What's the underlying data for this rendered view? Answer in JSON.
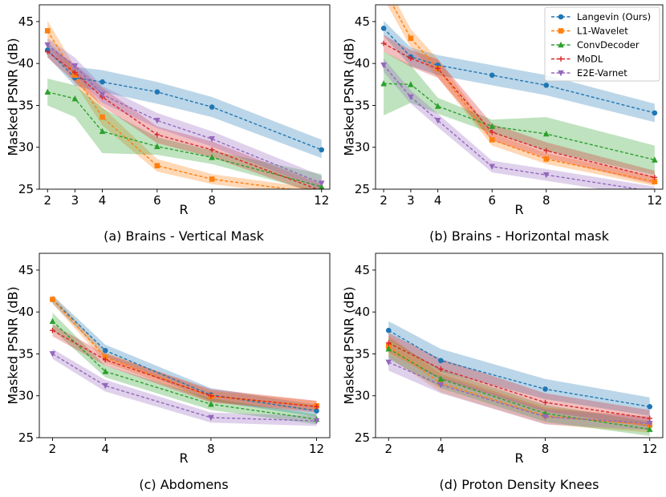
{
  "colors": {
    "Langevin (Ours)": "#1f77b4",
    "L1-Wavelet": "#ff7f0e",
    "ConvDecoder": "#2ca02c",
    "MoDL": "#d62728",
    "E2E-Varnet": "#9467bd"
  },
  "markers": {
    "Langevin (Ours)": "circle",
    "L1-Wavelet": "square",
    "ConvDecoder": "triangle-up",
    "MoDL": "plus",
    "E2E-Varnet": "triangle-down"
  },
  "legend": {
    "location": "top-right of panel (b)",
    "entries": [
      "Langevin (Ours)",
      "L1-Wavelet",
      "ConvDecoder",
      "MoDL",
      "E2E-Varnet"
    ]
  },
  "chart_data": [
    {
      "type": "line",
      "title": "(a) Brains - Vertical Mask",
      "xlabel": "R",
      "ylabel": "Masked PSNR (dB)",
      "xticks": [
        2,
        3,
        4,
        6,
        8,
        12
      ],
      "yticks": [
        25,
        30,
        35,
        40,
        45
      ],
      "xlim": [
        1.7,
        12.3
      ],
      "ylim": [
        25,
        47
      ],
      "x": [
        2,
        3,
        4,
        6,
        8,
        12
      ],
      "series": [
        {
          "name": "Langevin (Ours)",
          "values": [
            41.6,
            38.3,
            37.8,
            36.6,
            34.8,
            29.7
          ],
          "lower": [
            40.8,
            37.3,
            36.6,
            35.2,
            33.6,
            28.7
          ],
          "upper": [
            42.6,
            39.6,
            39.2,
            37.8,
            36.0,
            30.9
          ]
        },
        {
          "name": "L1-Wavelet",
          "values": [
            43.9,
            38.6,
            33.6,
            27.8,
            26.2,
            24.5
          ],
          "lower": [
            42.6,
            37.6,
            32.6,
            27.1,
            25.6,
            24.0
          ],
          "upper": [
            45.1,
            39.6,
            34.8,
            28.6,
            26.8,
            25.0
          ]
        },
        {
          "name": "ConvDecoder",
          "values": [
            36.6,
            35.8,
            31.9,
            30.1,
            28.8,
            25.3
          ],
          "lower": [
            35.0,
            33.6,
            29.3,
            29.1,
            28.0,
            24.5
          ],
          "upper": [
            38.2,
            37.4,
            34.7,
            31.2,
            29.6,
            26.8
          ]
        },
        {
          "name": "MoDL",
          "values": [
            41.4,
            38.9,
            36.0,
            31.5,
            29.7,
            24.8
          ],
          "lower": [
            40.7,
            37.8,
            34.9,
            30.5,
            28.8,
            24.2
          ],
          "upper": [
            42.1,
            39.9,
            37.1,
            32.5,
            30.7,
            25.6
          ]
        },
        {
          "name": "E2E-Varnet",
          "values": [
            42.2,
            39.7,
            36.3,
            33.2,
            31.0,
            25.7
          ],
          "lower": [
            41.4,
            38.7,
            35.3,
            32.3,
            30.1,
            24.9
          ],
          "upper": [
            43.0,
            40.7,
            37.3,
            34.1,
            31.9,
            26.6
          ]
        }
      ],
      "caption": "(a) Brains - Vertical Mask"
    },
    {
      "type": "line",
      "title": "(b) Brains - Horizontal mask",
      "xlabel": "R",
      "ylabel": "Masked PSNR (dB)",
      "xticks": [
        2,
        3,
        4,
        6,
        8,
        12
      ],
      "yticks": [
        25,
        30,
        35,
        40,
        45
      ],
      "xlim": [
        1.7,
        12.3
      ],
      "ylim": [
        25,
        47
      ],
      "x": [
        2,
        3,
        4,
        6,
        8,
        12
      ],
      "series": [
        {
          "name": "Langevin (Ours)",
          "values": [
            44.2,
            40.8,
            39.8,
            38.6,
            37.4,
            34.1
          ],
          "lower": [
            43.3,
            39.7,
            38.6,
            37.4,
            36.2,
            33.0
          ],
          "upper": [
            45.1,
            41.9,
            41.0,
            39.8,
            38.6,
            35.2
          ]
        },
        {
          "name": "L1-Wavelet",
          "values": [
            49.0,
            43.0,
            39.4,
            30.9,
            28.6,
            25.9
          ],
          "lower": [
            47.8,
            41.9,
            38.3,
            30.2,
            28.0,
            25.4
          ],
          "upper": [
            50.2,
            44.1,
            40.5,
            31.7,
            29.3,
            26.5
          ]
        },
        {
          "name": "ConvDecoder",
          "values": [
            37.6,
            37.5,
            34.9,
            32.5,
            31.6,
            28.5
          ],
          "lower": [
            33.8,
            35.3,
            34.0,
            31.7,
            29.6,
            26.7
          ],
          "upper": [
            41.4,
            39.8,
            35.9,
            33.3,
            33.6,
            30.2
          ]
        },
        {
          "name": "MoDL",
          "values": [
            42.4,
            40.6,
            39.4,
            31.8,
            29.6,
            26.4
          ],
          "lower": [
            41.4,
            39.6,
            38.3,
            30.8,
            28.7,
            25.6
          ],
          "upper": [
            43.4,
            41.6,
            40.5,
            32.8,
            30.6,
            27.2
          ]
        },
        {
          "name": "E2E-Varnet",
          "values": [
            39.8,
            36.0,
            33.2,
            27.7,
            26.7,
            24.7
          ],
          "lower": [
            39.0,
            35.2,
            32.4,
            27.0,
            26.0,
            24.0
          ],
          "upper": [
            40.6,
            36.8,
            34.0,
            28.4,
            27.4,
            25.3
          ]
        }
      ],
      "caption": "(b) Brains - Horizontal mask"
    },
    {
      "type": "line",
      "title": "(c) Abdomens",
      "xlabel": "R",
      "ylabel": "Masked PSNR (dB)",
      "xticks": [
        2,
        4,
        8,
        12
      ],
      "yticks": [
        25,
        30,
        35,
        40,
        45
      ],
      "xlim": [
        1.5,
        12.5
      ],
      "ylim": [
        25,
        47
      ],
      "x": [
        2,
        4,
        8,
        12
      ],
      "series": [
        {
          "name": "Langevin (Ours)",
          "values": [
            41.5,
            35.4,
            30.1,
            28.2
          ],
          "lower": [
            41.0,
            34.7,
            29.4,
            27.5
          ],
          "upper": [
            42.0,
            36.1,
            30.9,
            28.9
          ]
        },
        {
          "name": "L1-Wavelet",
          "values": [
            41.5,
            34.6,
            29.9,
            28.8
          ],
          "lower": [
            41.0,
            34.0,
            29.3,
            28.2
          ],
          "upper": [
            42.0,
            35.2,
            30.6,
            29.4
          ]
        },
        {
          "name": "ConvDecoder",
          "values": [
            38.9,
            32.9,
            29.0,
            27.2
          ],
          "lower": [
            37.9,
            32.2,
            28.3,
            26.6
          ],
          "upper": [
            39.9,
            33.6,
            29.7,
            27.8
          ]
        },
        {
          "name": "MoDL",
          "values": [
            37.8,
            34.3,
            30.0,
            28.7
          ],
          "lower": [
            37.1,
            33.6,
            29.2,
            28.0
          ],
          "upper": [
            38.5,
            35.0,
            30.8,
            29.4
          ]
        },
        {
          "name": "E2E-Varnet",
          "values": [
            35.0,
            31.2,
            27.4,
            27.0
          ],
          "lower": [
            34.4,
            30.5,
            26.8,
            26.4
          ],
          "upper": [
            35.6,
            31.9,
            28.0,
            27.6
          ]
        }
      ],
      "caption": "(c) Abdomens"
    },
    {
      "type": "line",
      "title": "(d) Proton Density Knees",
      "xlabel": "R",
      "ylabel": "Masked PSNR (dB)",
      "xticks": [
        2,
        4,
        8,
        12
      ],
      "yticks": [
        25,
        30,
        35,
        40,
        45
      ],
      "xlim": [
        1.5,
        12.5
      ],
      "ylim": [
        25,
        47
      ],
      "x": [
        2,
        4,
        8,
        12
      ],
      "series": [
        {
          "name": "Langevin (Ours)",
          "values": [
            37.8,
            34.2,
            30.8,
            28.7
          ],
          "lower": [
            36.7,
            32.9,
            29.6,
            27.6
          ],
          "upper": [
            38.9,
            35.6,
            32.0,
            29.8
          ]
        },
        {
          "name": "L1-Wavelet",
          "values": [
            35.9,
            31.5,
            27.6,
            26.5
          ],
          "lower": [
            34.6,
            30.4,
            26.6,
            25.6
          ],
          "upper": [
            37.2,
            32.6,
            28.6,
            27.5
          ]
        },
        {
          "name": "ConvDecoder",
          "values": [
            35.6,
            32.0,
            27.9,
            26.0
          ],
          "lower": [
            34.4,
            30.9,
            26.9,
            25.2
          ],
          "upper": [
            36.8,
            33.1,
            28.9,
            26.9
          ]
        },
        {
          "name": "MoDL",
          "values": [
            36.3,
            33.2,
            29.2,
            27.3
          ],
          "lower": [
            35.1,
            32.0,
            28.1,
            26.3
          ],
          "upper": [
            37.5,
            34.4,
            30.3,
            28.3
          ]
        },
        {
          "name": "E2E-Varnet",
          "values": [
            34.0,
            31.3,
            27.5,
            26.7
          ],
          "lower": [
            33.0,
            30.3,
            26.6,
            25.9
          ],
          "upper": [
            35.0,
            32.3,
            28.4,
            27.5
          ]
        }
      ],
      "caption": "(d) Proton Density Knees"
    }
  ]
}
